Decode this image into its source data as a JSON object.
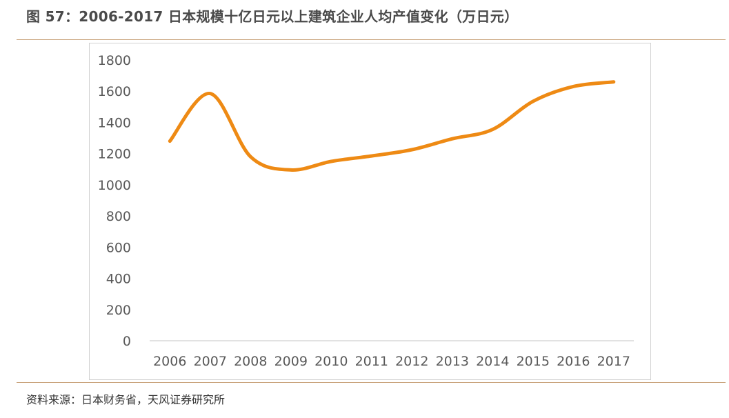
{
  "figure": {
    "title": "图 57：2006-2017 日本规模十亿日元以上建筑企业人均产值变化（万日元）",
    "source": "资料来源：日本财务省，天风证券研究所"
  },
  "colors": {
    "line": "#ee8a14",
    "axis": "#d9d9d9",
    "text": "#595959",
    "rule": "#c8a27a"
  },
  "chart_data": {
    "type": "line",
    "title": "",
    "xlabel": "",
    "ylabel": "",
    "categories": [
      "2006",
      "2007",
      "2008",
      "2009",
      "2010",
      "2011",
      "2012",
      "2013",
      "2014",
      "2015",
      "2016",
      "2017"
    ],
    "series": [
      {
        "values": [
          1280,
          1585,
          1180,
          1095,
          1150,
          1185,
          1225,
          1295,
          1355,
          1535,
          1630,
          1660
        ]
      }
    ],
    "ylim": [
      0,
      1800
    ],
    "yticks": [
      0,
      200,
      400,
      600,
      800,
      1000,
      1200,
      1400,
      1600,
      1800
    ],
    "smooth": true,
    "grid": false,
    "legend": "none"
  }
}
